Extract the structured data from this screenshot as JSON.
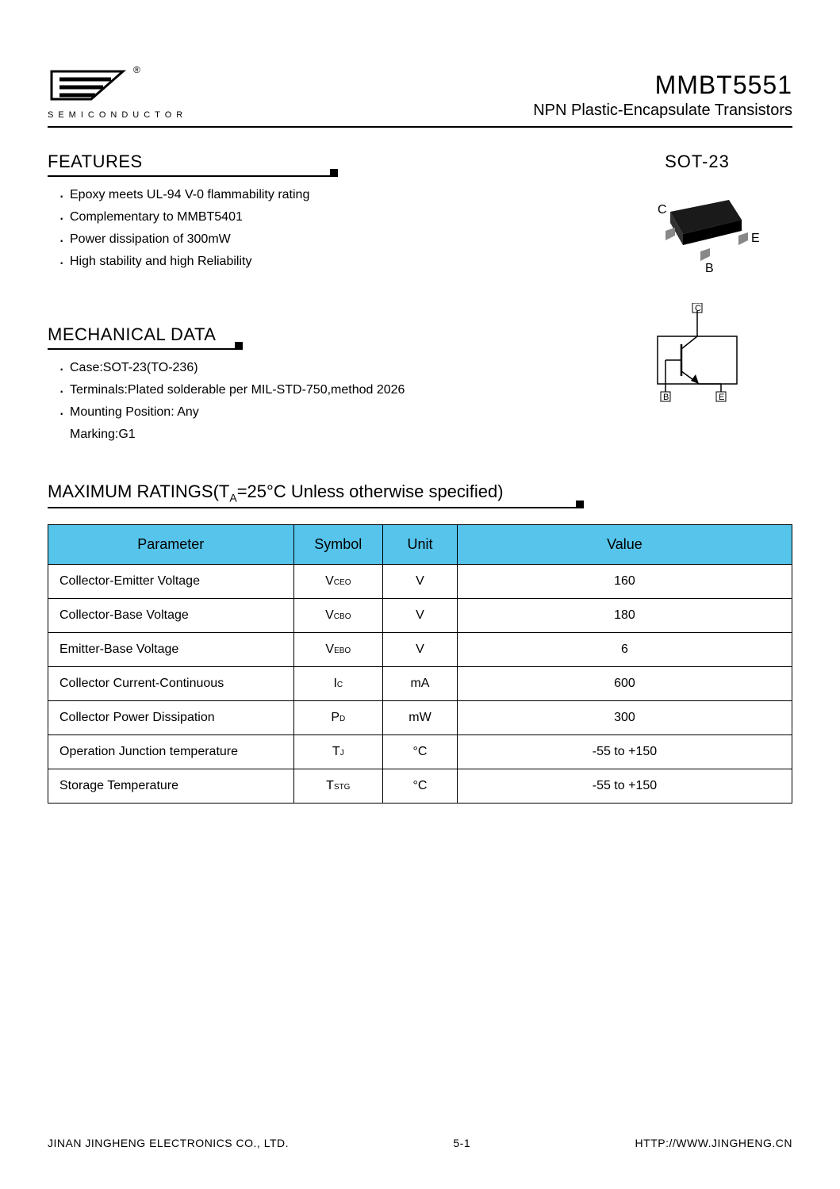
{
  "header": {
    "company_tag": "SEMICONDUCTOR",
    "part_number": "MMBT5551",
    "subtitle": "NPN Plastic-Encapsulate Transistors"
  },
  "features": {
    "title": "FEATURES",
    "items": [
      "Epoxy meets UL-94 V-0 flammability rating",
      "Complementary to MMBT5401",
      "Power dissipation of 300mW",
      "High stability and high Reliability"
    ]
  },
  "package": {
    "label": "SOT-23",
    "pin_c": "C",
    "pin_b": "B",
    "pin_e": "E"
  },
  "mechanical": {
    "title": "MECHANICAL DATA",
    "items": [
      "Case:SOT-23(TO-236)",
      "Terminals:Plated solderable per MIL-STD-750,method 2026",
      "Mounting Position: Any"
    ],
    "marking": "Marking:G1"
  },
  "schematic": {
    "pin_c": "C",
    "pin_b": "B",
    "pin_e": "E"
  },
  "ratings": {
    "title_prefix": "MAXIMUM RATINGS(T",
    "title_sub": "A",
    "title_suffix": "=25°C  Unless  otherwise  specified)",
    "headers": {
      "parameter": "Parameter",
      "symbol": "Symbol",
      "unit": "Unit",
      "value": "Value"
    },
    "rows": [
      {
        "param": "Collector-Emitter Voltage",
        "sym_main": "V",
        "sym_sub": "CEO",
        "unit": "V",
        "value": "160"
      },
      {
        "param": "Collector-Base Voltage",
        "sym_main": "V",
        "sym_sub": "CBO",
        "unit": "V",
        "value": "180"
      },
      {
        "param": "Emitter-Base Voltage",
        "sym_main": "V",
        "sym_sub": "EBO",
        "unit": "V",
        "value": "6"
      },
      {
        "param": "Collector Current-Continuous",
        "sym_main": "I",
        "sym_sub": "C",
        "unit": "mA",
        "value": "600"
      },
      {
        "param": "Collector Power Dissipation",
        "sym_main": "P",
        "sym_sub": "D",
        "unit": "mW",
        "value": "300"
      },
      {
        "param": "Operation Junction temperature",
        "sym_main": "T",
        "sym_sub": "J",
        "unit": "°C",
        "value": "-55 to +150"
      },
      {
        "param": "Storage Temperature",
        "sym_main": "T",
        "sym_sub": "STG",
        "unit": "°C",
        "value": "-55 to +150"
      }
    ]
  },
  "footer": {
    "left": "JINAN JINGHENG ELECTRONICS CO., LTD.",
    "center": "5-1",
    "right": "HTTP://WWW.JINGHENG.CN"
  },
  "colors": {
    "header_bg": "#56c4eb",
    "text": "#000000",
    "border": "#000000"
  }
}
